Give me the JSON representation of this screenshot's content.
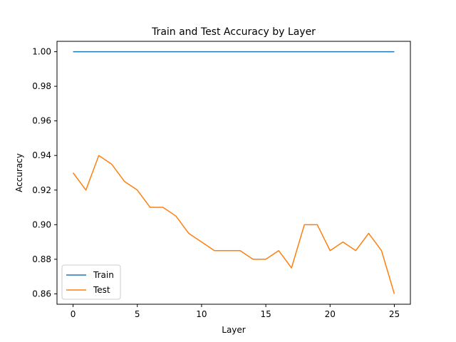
{
  "chart_data": {
    "type": "line",
    "title": "Train and Test Accuracy by Layer",
    "xlabel": "Layer",
    "ylabel": "Accuracy",
    "xlim": [
      -1.25,
      26.25
    ],
    "ylim": [
      0.854,
      1.006
    ],
    "x_ticks": [
      0,
      5,
      10,
      15,
      20,
      25
    ],
    "y_ticks": [
      0.86,
      0.88,
      0.9,
      0.92,
      0.94,
      0.96,
      0.98,
      1.0
    ],
    "x_tick_labels": [
      "0",
      "5",
      "10",
      "15",
      "20",
      "25"
    ],
    "y_tick_labels": [
      "0.86",
      "0.88",
      "0.90",
      "0.92",
      "0.94",
      "0.96",
      "0.98",
      "1.00"
    ],
    "grid": false,
    "legend_position": "lower-left",
    "x": [
      0,
      1,
      2,
      3,
      4,
      5,
      6,
      7,
      8,
      9,
      10,
      11,
      12,
      13,
      14,
      15,
      16,
      17,
      18,
      19,
      20,
      21,
      22,
      23,
      24,
      25
    ],
    "series": [
      {
        "name": "Train",
        "color": "#1f77b4",
        "values": [
          1.0,
          1.0,
          1.0,
          1.0,
          1.0,
          1.0,
          1.0,
          1.0,
          1.0,
          1.0,
          1.0,
          1.0,
          1.0,
          1.0,
          1.0,
          1.0,
          1.0,
          1.0,
          1.0,
          1.0,
          1.0,
          1.0,
          1.0,
          1.0,
          1.0,
          1.0
        ]
      },
      {
        "name": "Test",
        "color": "#ff7f0e",
        "values": [
          0.93,
          0.92,
          0.94,
          0.935,
          0.925,
          0.92,
          0.91,
          0.91,
          0.905,
          0.895,
          0.89,
          0.885,
          0.885,
          0.885,
          0.88,
          0.88,
          0.885,
          0.875,
          0.9,
          0.9,
          0.885,
          0.89,
          0.885,
          0.895,
          0.885,
          0.86
        ]
      }
    ]
  }
}
